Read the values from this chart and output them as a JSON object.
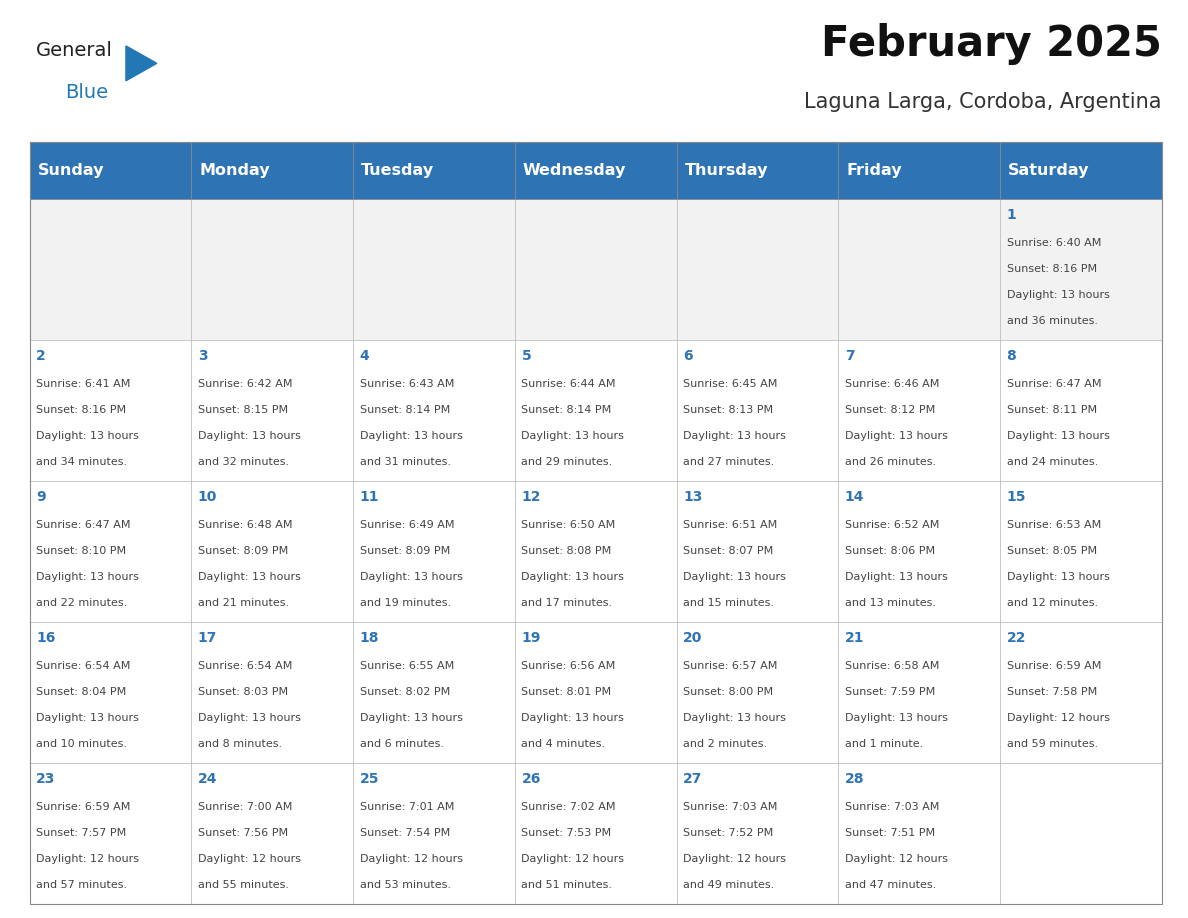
{
  "title": "February 2025",
  "subtitle": "Laguna Larga, Cordoba, Argentina",
  "header_bg": "#2E74B5",
  "header_text_color": "#FFFFFF",
  "day_names": [
    "Sunday",
    "Monday",
    "Tuesday",
    "Wednesday",
    "Thursday",
    "Friday",
    "Saturday"
  ],
  "cell_bg": "#FFFFFF",
  "cell_border": "#CCCCCC",
  "date_color": "#2E74B5",
  "text_color": "#555555",
  "logo_general_color": "#222222",
  "logo_blue_color": "#2278B5",
  "header_row_bg": "#F2F2F2",
  "calendar": [
    [
      null,
      null,
      null,
      null,
      null,
      null,
      {
        "day": 1,
        "sunrise": "6:40 AM",
        "sunset": "8:16 PM",
        "daylight_h": "13 hours",
        "daylight_m": "36 minutes."
      }
    ],
    [
      {
        "day": 2,
        "sunrise": "6:41 AM",
        "sunset": "8:16 PM",
        "daylight_h": "13 hours",
        "daylight_m": "34 minutes."
      },
      {
        "day": 3,
        "sunrise": "6:42 AM",
        "sunset": "8:15 PM",
        "daylight_h": "13 hours",
        "daylight_m": "32 minutes."
      },
      {
        "day": 4,
        "sunrise": "6:43 AM",
        "sunset": "8:14 PM",
        "daylight_h": "13 hours",
        "daylight_m": "31 minutes."
      },
      {
        "day": 5,
        "sunrise": "6:44 AM",
        "sunset": "8:14 PM",
        "daylight_h": "13 hours",
        "daylight_m": "29 minutes."
      },
      {
        "day": 6,
        "sunrise": "6:45 AM",
        "sunset": "8:13 PM",
        "daylight_h": "13 hours",
        "daylight_m": "27 minutes."
      },
      {
        "day": 7,
        "sunrise": "6:46 AM",
        "sunset": "8:12 PM",
        "daylight_h": "13 hours",
        "daylight_m": "26 minutes."
      },
      {
        "day": 8,
        "sunrise": "6:47 AM",
        "sunset": "8:11 PM",
        "daylight_h": "13 hours",
        "daylight_m": "24 minutes."
      }
    ],
    [
      {
        "day": 9,
        "sunrise": "6:47 AM",
        "sunset": "8:10 PM",
        "daylight_h": "13 hours",
        "daylight_m": "22 minutes."
      },
      {
        "day": 10,
        "sunrise": "6:48 AM",
        "sunset": "8:09 PM",
        "daylight_h": "13 hours",
        "daylight_m": "21 minutes."
      },
      {
        "day": 11,
        "sunrise": "6:49 AM",
        "sunset": "8:09 PM",
        "daylight_h": "13 hours",
        "daylight_m": "19 minutes."
      },
      {
        "day": 12,
        "sunrise": "6:50 AM",
        "sunset": "8:08 PM",
        "daylight_h": "13 hours",
        "daylight_m": "17 minutes."
      },
      {
        "day": 13,
        "sunrise": "6:51 AM",
        "sunset": "8:07 PM",
        "daylight_h": "13 hours",
        "daylight_m": "15 minutes."
      },
      {
        "day": 14,
        "sunrise": "6:52 AM",
        "sunset": "8:06 PM",
        "daylight_h": "13 hours",
        "daylight_m": "13 minutes."
      },
      {
        "day": 15,
        "sunrise": "6:53 AM",
        "sunset": "8:05 PM",
        "daylight_h": "13 hours",
        "daylight_m": "12 minutes."
      }
    ],
    [
      {
        "day": 16,
        "sunrise": "6:54 AM",
        "sunset": "8:04 PM",
        "daylight_h": "13 hours",
        "daylight_m": "10 minutes."
      },
      {
        "day": 17,
        "sunrise": "6:54 AM",
        "sunset": "8:03 PM",
        "daylight_h": "13 hours",
        "daylight_m": "8 minutes."
      },
      {
        "day": 18,
        "sunrise": "6:55 AM",
        "sunset": "8:02 PM",
        "daylight_h": "13 hours",
        "daylight_m": "6 minutes."
      },
      {
        "day": 19,
        "sunrise": "6:56 AM",
        "sunset": "8:01 PM",
        "daylight_h": "13 hours",
        "daylight_m": "4 minutes."
      },
      {
        "day": 20,
        "sunrise": "6:57 AM",
        "sunset": "8:00 PM",
        "daylight_h": "13 hours",
        "daylight_m": "2 minutes."
      },
      {
        "day": 21,
        "sunrise": "6:58 AM",
        "sunset": "7:59 PM",
        "daylight_h": "13 hours",
        "daylight_m": "1 minute."
      },
      {
        "day": 22,
        "sunrise": "6:59 AM",
        "sunset": "7:58 PM",
        "daylight_h": "12 hours",
        "daylight_m": "59 minutes."
      }
    ],
    [
      {
        "day": 23,
        "sunrise": "6:59 AM",
        "sunset": "7:57 PM",
        "daylight_h": "12 hours",
        "daylight_m": "57 minutes."
      },
      {
        "day": 24,
        "sunrise": "7:00 AM",
        "sunset": "7:56 PM",
        "daylight_h": "12 hours",
        "daylight_m": "55 minutes."
      },
      {
        "day": 25,
        "sunrise": "7:01 AM",
        "sunset": "7:54 PM",
        "daylight_h": "12 hours",
        "daylight_m": "53 minutes."
      },
      {
        "day": 26,
        "sunrise": "7:02 AM",
        "sunset": "7:53 PM",
        "daylight_h": "12 hours",
        "daylight_m": "51 minutes."
      },
      {
        "day": 27,
        "sunrise": "7:03 AM",
        "sunset": "7:52 PM",
        "daylight_h": "12 hours",
        "daylight_m": "49 minutes."
      },
      {
        "day": 28,
        "sunrise": "7:03 AM",
        "sunset": "7:51 PM",
        "daylight_h": "12 hours",
        "daylight_m": "47 minutes."
      },
      null
    ]
  ],
  "fig_width": 11.88,
  "fig_height": 9.18,
  "header_font_size": 11.5,
  "day_num_font_size": 10,
  "cell_text_font_size": 8.0,
  "title_font_size": 30,
  "subtitle_font_size": 15
}
